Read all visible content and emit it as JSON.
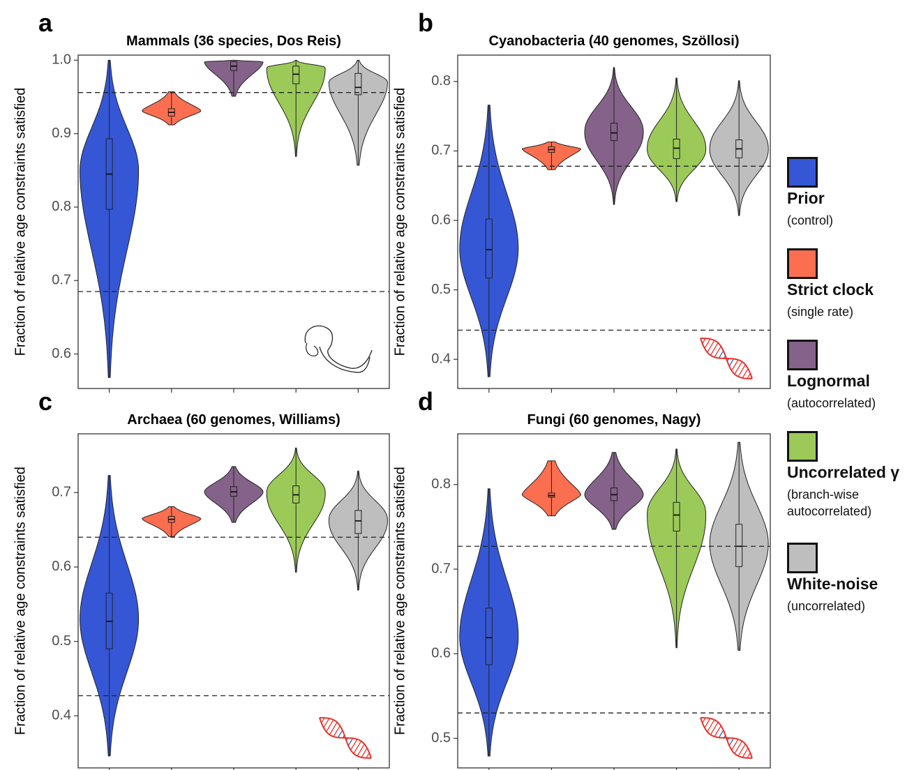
{
  "legend": {
    "items": [
      {
        "key": "prior",
        "name": "Prior",
        "desc": "(control)",
        "color": "#3557d6"
      },
      {
        "key": "strict",
        "name": "Strict clock",
        "desc": "(single rate)",
        "color": "#fb6e50"
      },
      {
        "key": "lognormal",
        "name": "Lognormal",
        "desc": "(autocorrelated)",
        "color": "#85628a"
      },
      {
        "key": "ugamma",
        "name": "Uncorrelated γ",
        "desc": "(branch-wise autocorrelated)",
        "color": "#9bca58"
      },
      {
        "key": "whitenoise",
        "name": "White-noise",
        "desc": "(uncorrelated)",
        "color": "#bebebe"
      }
    ]
  },
  "chart_data": [
    {
      "type": "violin",
      "panel_letter": "a",
      "title": "Mammals (36 species, Dos Reis)",
      "ylabel": "Fraction of relative age constraints satisfied",
      "ylim": [
        0.553,
        1.007
      ],
      "yticks": [
        0.6,
        0.7,
        0.8,
        0.9,
        1.0
      ],
      "ytick_labels": [
        "0.6",
        "0.7",
        "0.8",
        "0.9",
        "1.0"
      ],
      "reference_lines": [
        0.956,
        0.685
      ],
      "icon": "mammoth-icon",
      "series": [
        {
          "name": "Prior",
          "min": 0.568,
          "max": 1.0,
          "q1": 0.797,
          "median": 0.845,
          "q3": 0.893,
          "peak": 0.85,
          "tailsharp": 2.0
        },
        {
          "name": "Strict clock",
          "min": 0.912,
          "max": 0.957,
          "q1": 0.924,
          "median": 0.929,
          "q3": 0.934,
          "peak": 0.931,
          "tailsharp": 1.6
        },
        {
          "name": "Lognormal",
          "min": 0.951,
          "max": 1.0,
          "q1": 0.986,
          "median": 0.992,
          "q3": 0.998,
          "peak": 0.998,
          "tailsharp": 1.8
        },
        {
          "name": "Uncorrelated γ",
          "min": 0.869,
          "max": 1.0,
          "q1": 0.968,
          "median": 0.981,
          "q3": 0.992,
          "peak": 0.99,
          "tailsharp": 2.2
        },
        {
          "name": "White-noise",
          "min": 0.857,
          "max": 1.0,
          "q1": 0.953,
          "median": 0.963,
          "q3": 0.982,
          "peak": 0.97,
          "tailsharp": 2.0
        }
      ]
    },
    {
      "type": "violin",
      "panel_letter": "b",
      "title": "Cyanobacteria (40 genomes, Szöllosi)",
      "ylabel": "Fraction of relative age constraints satisfied",
      "ylim": [
        0.358,
        0.838
      ],
      "yticks": [
        0.4,
        0.5,
        0.6,
        0.7,
        0.8
      ],
      "ytick_labels": [
        "0.4",
        "0.5",
        "0.6",
        "0.7",
        "0.8"
      ],
      "reference_lines": [
        0.678,
        0.442
      ],
      "icon": "dna-icon",
      "series": [
        {
          "name": "Prior",
          "min": 0.375,
          "max": 0.766,
          "q1": 0.517,
          "median": 0.558,
          "q3": 0.602,
          "peak": 0.56,
          "tailsharp": 2.0
        },
        {
          "name": "Strict clock",
          "min": 0.673,
          "max": 0.713,
          "q1": 0.698,
          "median": 0.702,
          "q3": 0.706,
          "peak": 0.703,
          "tailsharp": 1.5
        },
        {
          "name": "Lognormal",
          "min": 0.623,
          "max": 0.82,
          "q1": 0.715,
          "median": 0.726,
          "q3": 0.74,
          "peak": 0.727,
          "tailsharp": 2.2
        },
        {
          "name": "Uncorrelated γ",
          "min": 0.627,
          "max": 0.805,
          "q1": 0.689,
          "median": 0.704,
          "q3": 0.717,
          "peak": 0.703,
          "tailsharp": 2.2
        },
        {
          "name": "White-noise",
          "min": 0.607,
          "max": 0.801,
          "q1": 0.69,
          "median": 0.703,
          "q3": 0.716,
          "peak": 0.703,
          "tailsharp": 2.2
        }
      ]
    },
    {
      "type": "violin",
      "panel_letter": "c",
      "title": "Archaea (60 genomes, Williams)",
      "ylabel": "Fraction of relative age constraints satisfied",
      "ylim": [
        0.33,
        0.779
      ],
      "yticks": [
        0.4,
        0.5,
        0.6,
        0.7
      ],
      "ytick_labels": [
        "0.4",
        "0.5",
        "0.6",
        "0.7"
      ],
      "reference_lines": [
        0.64,
        0.427
      ],
      "icon": "dna-icon",
      "series": [
        {
          "name": "Prior",
          "min": 0.346,
          "max": 0.723,
          "q1": 0.49,
          "median": 0.527,
          "q3": 0.565,
          "peak": 0.53,
          "tailsharp": 2.0
        },
        {
          "name": "Strict clock",
          "min": 0.641,
          "max": 0.681,
          "q1": 0.66,
          "median": 0.664,
          "q3": 0.668,
          "peak": 0.665,
          "tailsharp": 1.6
        },
        {
          "name": "Lognormal",
          "min": 0.66,
          "max": 0.735,
          "q1": 0.695,
          "median": 0.701,
          "q3": 0.708,
          "peak": 0.701,
          "tailsharp": 1.8
        },
        {
          "name": "Uncorrelated γ",
          "min": 0.593,
          "max": 0.76,
          "q1": 0.686,
          "median": 0.697,
          "q3": 0.709,
          "peak": 0.7,
          "tailsharp": 2.2
        },
        {
          "name": "White-noise",
          "min": 0.569,
          "max": 0.729,
          "q1": 0.645,
          "median": 0.662,
          "q3": 0.676,
          "peak": 0.663,
          "tailsharp": 2.2
        }
      ]
    },
    {
      "type": "violin",
      "panel_letter": "d",
      "title": "Fungi (60 genomes, Nagy)",
      "ylabel": "Fraction of relative age constraints satisfied",
      "ylim": [
        0.465,
        0.86
      ],
      "yticks": [
        0.5,
        0.6,
        0.7,
        0.8
      ],
      "ytick_labels": [
        "0.5",
        "0.6",
        "0.7",
        "0.8"
      ],
      "reference_lines": [
        0.727,
        0.53
      ],
      "icon": "dna-icon",
      "series": [
        {
          "name": "Prior",
          "min": 0.479,
          "max": 0.795,
          "q1": 0.587,
          "median": 0.619,
          "q3": 0.654,
          "peak": 0.62,
          "tailsharp": 2.0
        },
        {
          "name": "Strict clock",
          "min": 0.763,
          "max": 0.828,
          "q1": 0.785,
          "median": 0.787,
          "q3": 0.79,
          "peak": 0.788,
          "tailsharp": 1.5
        },
        {
          "name": "Lognormal",
          "min": 0.747,
          "max": 0.838,
          "q1": 0.781,
          "median": 0.788,
          "q3": 0.796,
          "peak": 0.788,
          "tailsharp": 1.8
        },
        {
          "name": "Uncorrelated γ",
          "min": 0.607,
          "max": 0.842,
          "q1": 0.745,
          "median": 0.764,
          "q3": 0.779,
          "peak": 0.765,
          "tailsharp": 2.2
        },
        {
          "name": "White-noise",
          "min": 0.604,
          "max": 0.85,
          "q1": 0.703,
          "median": 0.727,
          "q3": 0.753,
          "peak": 0.73,
          "tailsharp": 2.0
        }
      ]
    }
  ]
}
